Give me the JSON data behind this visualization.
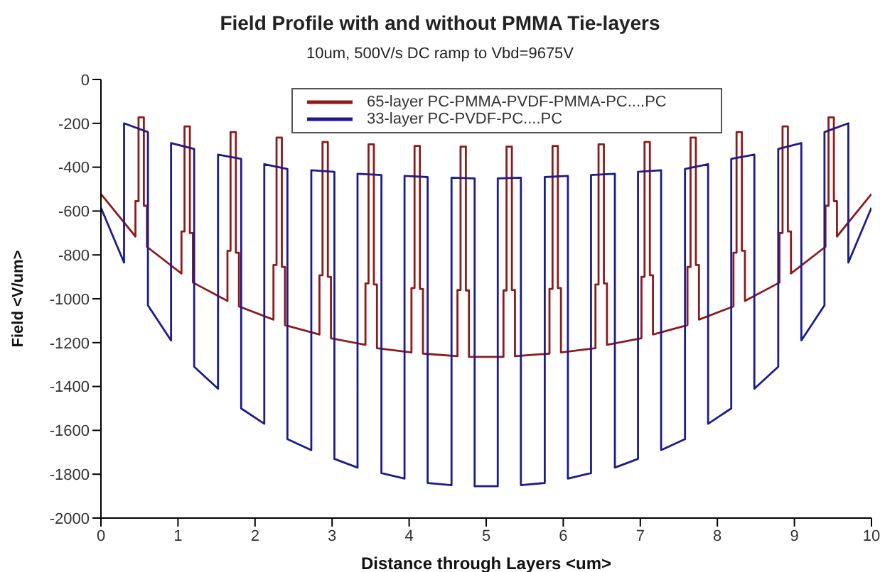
{
  "chart_data": {
    "type": "line",
    "title": "Field Profile with and without PMMA Tie-layers",
    "subtitle": "10um, 500V/s DC ramp to Vbd=9675V",
    "xlabel": "Distance through Layers <um>",
    "ylabel": "Field <V/um>",
    "xlim": [
      0,
      10
    ],
    "xticks": [
      0,
      1,
      2,
      3,
      4,
      5,
      6,
      7,
      8,
      9,
      10
    ],
    "ylim": [
      -2000,
      0
    ],
    "yticks": [
      -2000,
      -1800,
      -1600,
      -1400,
      -1200,
      -1000,
      -800,
      -600,
      -400,
      -200,
      0
    ],
    "grid": false,
    "legend": "top",
    "series": [
      {
        "name": "65-layer PC-PMMA-PVDF-PMMA-PC....PC",
        "color": "#8b1c1c",
        "x": [
          0,
          0.448,
          0.448,
          0.488,
          0.488,
          0.557,
          0.557,
          0.597,
          0.597,
          1.045,
          1.045,
          1.085,
          1.085,
          1.154,
          1.154,
          1.194,
          1.194,
          1.642,
          1.642,
          1.682,
          1.682,
          1.751,
          1.751,
          1.791,
          1.791,
          2.239,
          2.239,
          2.279,
          2.279,
          2.348,
          2.348,
          2.388,
          2.388,
          2.836,
          2.836,
          2.876,
          2.876,
          2.945,
          2.945,
          2.985,
          2.985,
          3.433,
          3.433,
          3.473,
          3.473,
          3.542,
          3.542,
          3.582,
          3.582,
          4.03,
          4.03,
          4.07,
          4.07,
          4.139,
          4.139,
          4.179,
          4.179,
          4.627,
          4.627,
          4.667,
          4.667,
          4.736,
          4.736,
          4.776,
          4.776,
          5.224,
          5.224,
          5.264,
          5.264,
          5.333,
          5.333,
          5.373,
          5.373,
          5.821,
          5.821,
          5.861,
          5.861,
          5.93,
          5.93,
          5.97,
          5.97,
          6.418,
          6.418,
          6.458,
          6.458,
          6.527,
          6.527,
          6.567,
          6.567,
          7.015,
          7.015,
          7.055,
          7.055,
          7.124,
          7.124,
          7.164,
          7.164,
          7.612,
          7.612,
          7.652,
          7.652,
          7.721,
          7.721,
          7.761,
          7.761,
          8.209,
          8.209,
          8.249,
          8.249,
          8.318,
          8.318,
          8.358,
          8.358,
          8.806,
          8.806,
          8.846,
          8.846,
          8.915,
          8.915,
          8.955,
          8.955,
          9.403,
          9.403,
          9.443,
          9.443,
          9.512,
          9.512,
          9.552,
          9.552,
          10
        ],
        "values": [
          -522,
          -716,
          -555,
          -555,
          -173,
          -173,
          -576,
          -576,
          -763,
          -885,
          -693,
          -693,
          -214,
          -214,
          -700,
          -700,
          -926,
          -1010,
          -781,
          -781,
          -240,
          -240,
          -790,
          -790,
          -1035,
          -1095,
          -846,
          -846,
          -265,
          -265,
          -855,
          -855,
          -1120,
          -1163,
          -893,
          -893,
          -285,
          -285,
          -900,
          -900,
          -1180,
          -1210,
          -930,
          -930,
          -296,
          -296,
          -935,
          -935,
          -1225,
          -1245,
          -951,
          -951,
          -303,
          -303,
          -955,
          -955,
          -1250,
          -1262,
          -960,
          -960,
          -306,
          -306,
          -962,
          -962,
          -1265,
          -1265,
          -962,
          -962,
          -306,
          -306,
          -960,
          -960,
          -1262,
          -1250,
          -955,
          -955,
          -303,
          -303,
          -951,
          -951,
          -1245,
          -1225,
          -935,
          -935,
          -296,
          -296,
          -930,
          -930,
          -1210,
          -1180,
          -900,
          -900,
          -285,
          -285,
          -893,
          -893,
          -1163,
          -1120,
          -855,
          -855,
          -265,
          -265,
          -846,
          -846,
          -1095,
          -1035,
          -790,
          -790,
          -240,
          -240,
          -781,
          -781,
          -1010,
          -926,
          -700,
          -700,
          -214,
          -214,
          -693,
          -693,
          -885,
          -763,
          -576,
          -576,
          -173,
          -173,
          -555,
          -555,
          -716,
          -522
        ]
      },
      {
        "name": "33-layer PC-PVDF-PC....PC",
        "color": "#1c1c8c",
        "x": [
          0,
          0.3,
          0.3,
          0.61,
          0.61,
          0.91,
          0.91,
          1.21,
          1.21,
          1.52,
          1.52,
          1.82,
          1.82,
          2.12,
          2.12,
          2.42,
          2.42,
          2.73,
          2.73,
          3.03,
          3.03,
          3.33,
          3.33,
          3.64,
          3.64,
          3.94,
          3.94,
          4.24,
          4.24,
          4.55,
          4.55,
          4.85,
          4.85,
          5.15,
          5.15,
          5.45,
          5.45,
          5.76,
          5.76,
          6.06,
          6.06,
          6.36,
          6.36,
          6.67,
          6.67,
          6.97,
          6.97,
          7.27,
          7.27,
          7.58,
          7.58,
          7.88,
          7.88,
          8.18,
          8.18,
          8.48,
          8.48,
          8.79,
          8.79,
          9.09,
          9.09,
          9.39,
          9.39,
          9.7,
          9.7,
          10
        ],
        "values": [
          -585,
          -835,
          -200,
          -240,
          -1030,
          -1190,
          -290,
          -317,
          -1310,
          -1410,
          -343,
          -362,
          -1500,
          -1570,
          -386,
          -408,
          -1640,
          -1690,
          -414,
          -421,
          -1730,
          -1770,
          -430,
          -436,
          -1795,
          -1820,
          -440,
          -445,
          -1840,
          -1850,
          -448,
          -451,
          -1855,
          -1855,
          -451,
          -448,
          -1850,
          -1840,
          -445,
          -440,
          -1820,
          -1795,
          -436,
          -430,
          -1770,
          -1730,
          -421,
          -414,
          -1690,
          -1640,
          -408,
          -386,
          -1570,
          -1500,
          -362,
          -343,
          -1410,
          -1310,
          -317,
          -290,
          -1190,
          -1030,
          -240,
          -200,
          -835,
          -585
        ]
      }
    ]
  }
}
